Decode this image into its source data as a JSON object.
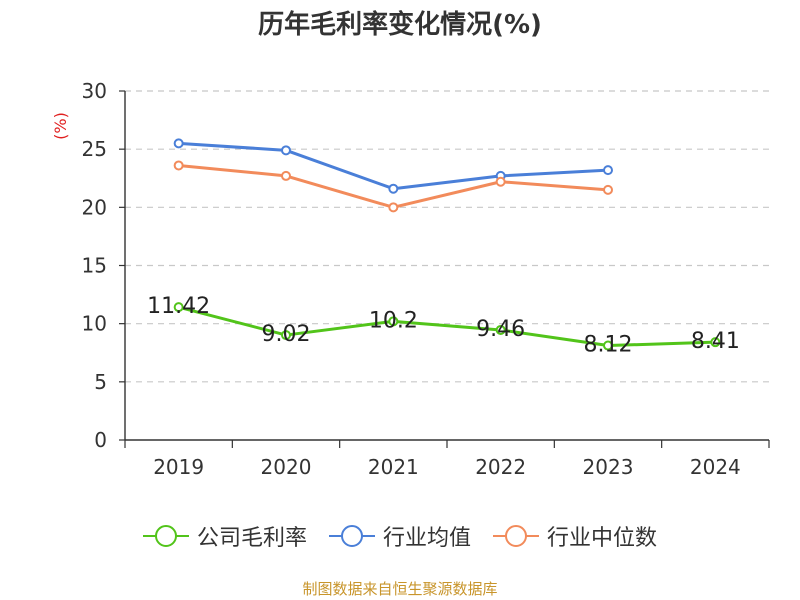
{
  "chart_data": {
    "type": "line",
    "title": "历年毛利率变化情况(%)",
    "ylabel": "(%)",
    "xlabel": "",
    "ylim": [
      0,
      30
    ],
    "yticks": [
      0,
      5,
      10,
      15,
      20,
      25,
      30
    ],
    "categories": [
      "2019",
      "2020",
      "2021",
      "2022",
      "2023",
      "2024"
    ],
    "series": [
      {
        "name": "公司毛利率",
        "color": "#52c41a",
        "values": [
          11.42,
          9.02,
          10.2,
          9.46,
          8.12,
          8.41
        ],
        "labels": [
          "11.42",
          "9.02",
          "10.2",
          "9.46",
          "8.12",
          "8.41"
        ]
      },
      {
        "name": "行业均值",
        "color": "#4a7fd8",
        "values": [
          25.5,
          24.9,
          21.6,
          22.7,
          23.2,
          null
        ]
      },
      {
        "name": "行业中位数",
        "color": "#f28b5b",
        "values": [
          23.6,
          22.7,
          20.0,
          22.2,
          21.5,
          null
        ]
      }
    ],
    "grid": true,
    "legend_position": "bottom"
  },
  "footer": {
    "source": "制图数据来自恒生聚源数据库"
  }
}
